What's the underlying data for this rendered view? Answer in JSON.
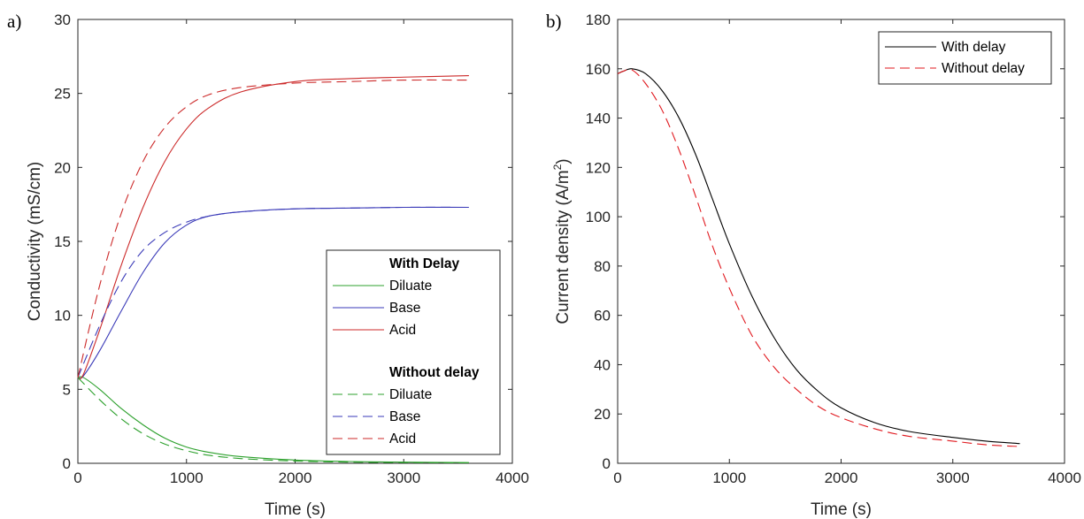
{
  "chart_data": [
    {
      "type": "line",
      "panel_label": "a)",
      "xlabel": "Time (s)",
      "ylabel": "Conductivity (mS/cm)",
      "xlim": [
        0,
        4000
      ],
      "ylim": [
        0,
        30
      ],
      "xticks": [
        "0",
        "1000",
        "2000",
        "3000",
        "4000"
      ],
      "yticks": [
        "0",
        "5",
        "10",
        "15",
        "20",
        "25",
        "30"
      ],
      "grid": false,
      "legend_position": "bottom-right",
      "legend_groups": [
        {
          "heading": "With Delay",
          "series": [
            {
              "name": "Diluate",
              "color": "#2ca02c",
              "style": "solid",
              "x": [
                0,
                50,
                200,
                400,
                600,
                800,
                1000,
                1200,
                1500,
                2000,
                2500,
                3000,
                3600
              ],
              "y": [
                5.8,
                5.8,
                5.0,
                3.7,
                2.6,
                1.7,
                1.1,
                0.75,
                0.45,
                0.22,
                0.12,
                0.08,
                0.05
              ]
            },
            {
              "name": "Base",
              "color": "#3a3ab8",
              "style": "solid",
              "x": [
                0,
                50,
                200,
                400,
                600,
                800,
                1000,
                1200,
                1500,
                2000,
                2500,
                3000,
                3600
              ],
              "y": [
                5.8,
                5.9,
                7.6,
                10.3,
                12.9,
                14.9,
                16.1,
                16.7,
                17.0,
                17.2,
                17.25,
                17.3,
                17.3
              ]
            },
            {
              "name": "Acid",
              "color": "#cc2a2a",
              "style": "solid",
              "x": [
                0,
                50,
                200,
                400,
                600,
                800,
                1000,
                1200,
                1500,
                2000,
                2500,
                3000,
                3600
              ],
              "y": [
                5.8,
                6.0,
                9.0,
                13.4,
                17.3,
                20.4,
                22.6,
                24.0,
                25.1,
                25.8,
                26.0,
                26.1,
                26.2
              ]
            }
          ]
        },
        {
          "heading": "Without delay",
          "series": [
            {
              "name": "Diluate",
              "color": "#2ca02c",
              "style": "dashed",
              "x": [
                0,
                200,
                400,
                600,
                800,
                1000,
                1200,
                1500,
                2000,
                2500,
                3000,
                3600
              ],
              "y": [
                5.8,
                4.3,
                3.0,
                2.0,
                1.3,
                0.85,
                0.55,
                0.32,
                0.15,
                0.08,
                0.05,
                0.03
              ]
            },
            {
              "name": "Base",
              "color": "#3a3ab8",
              "style": "dashed",
              "x": [
                0,
                200,
                400,
                600,
                800,
                1000,
                1200,
                1500,
                2000,
                2500,
                3000,
                3600
              ],
              "y": [
                5.8,
                9.3,
                12.3,
                14.4,
                15.6,
                16.3,
                16.7,
                17.0,
                17.2,
                17.25,
                17.3,
                17.3
              ]
            },
            {
              "name": "Acid",
              "color": "#cc2a2a",
              "style": "dashed",
              "x": [
                0,
                200,
                400,
                600,
                800,
                1000,
                1200,
                1500,
                2000,
                2500,
                3000,
                3600
              ],
              "y": [
                5.8,
                12.0,
                16.9,
                20.4,
                22.7,
                24.1,
                24.9,
                25.4,
                25.7,
                25.8,
                25.9,
                25.9
              ]
            }
          ]
        }
      ]
    },
    {
      "type": "line",
      "panel_label": "b)",
      "xlabel": "Time (s)",
      "ylabel": "Current density (A/m",
      "ylabel_sup": "2",
      "ylabel_close": ")",
      "xlim": [
        0,
        4000
      ],
      "ylim": [
        0,
        180
      ],
      "xticks": [
        "0",
        "1000",
        "2000",
        "3000",
        "4000"
      ],
      "yticks": [
        "0",
        "20",
        "40",
        "60",
        "80",
        "100",
        "120",
        "140",
        "160",
        "180"
      ],
      "grid": false,
      "legend_position": "top-right",
      "series": [
        {
          "name": "With delay",
          "color": "#000000",
          "style": "solid",
          "x": [
            0,
            50,
            130,
            250,
            400,
            550,
            700,
            850,
            1000,
            1200,
            1400,
            1600,
            1800,
            2000,
            2300,
            2600,
            3000,
            3300,
            3600
          ],
          "y": [
            158,
            159,
            160,
            158,
            151,
            140,
            125,
            107,
            89,
            68,
            51,
            38,
            29,
            22.5,
            16.5,
            13,
            10.5,
            9,
            8
          ]
        },
        {
          "name": "Without delay",
          "color": "#e0181e",
          "style": "dashed",
          "x": [
            0,
            50,
            130,
            250,
            400,
            550,
            700,
            850,
            1000,
            1200,
            1400,
            1600,
            1800,
            2000,
            2300,
            2600,
            3000,
            3300,
            3600
          ],
          "y": [
            158,
            159,
            159.5,
            154,
            143,
            127,
            108,
            88,
            71,
            52,
            39,
            30,
            23,
            18.5,
            14,
            11,
            9,
            7.5,
            6.8
          ]
        }
      ]
    }
  ]
}
